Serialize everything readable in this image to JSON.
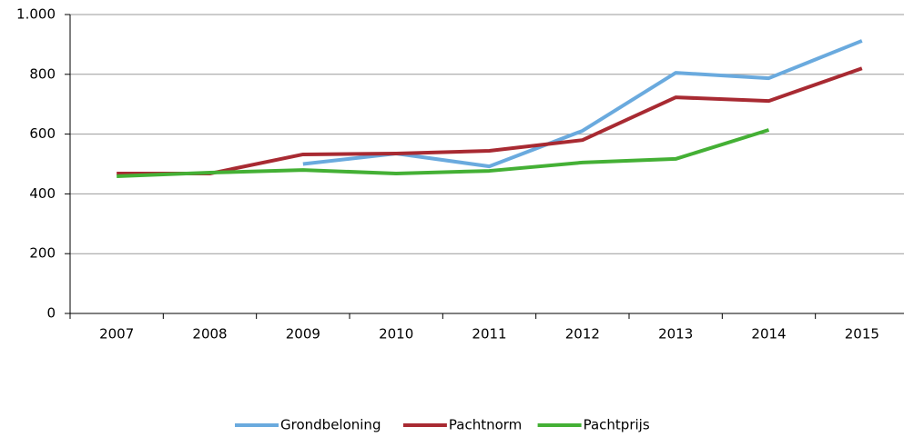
{
  "chart_data": {
    "type": "line",
    "categories": [
      "2007",
      "2008",
      "2009",
      "2010",
      "2011",
      "2012",
      "2013",
      "2014",
      "2015"
    ],
    "series": [
      {
        "name": "Grondbeloning",
        "color": "#6aaade",
        "values": [
          null,
          null,
          500,
          535,
          492,
          611,
          805,
          787,
          912
        ]
      },
      {
        "name": "Pachtnorm",
        "color": "#a82a32",
        "values": [
          468,
          468,
          532,
          535,
          544,
          580,
          723,
          711,
          820
        ]
      },
      {
        "name": "Pachtprijs",
        "color": "#44b035",
        "values": [
          459,
          471,
          480,
          468,
          477,
          505,
          517,
          614,
          null
        ]
      }
    ],
    "ylim": [
      0,
      1000
    ],
    "yticks": [
      0,
      200,
      400,
      600,
      800,
      {
        "value": 1000,
        "label": "1.000"
      }
    ],
    "grid": true,
    "legend": "bottom"
  }
}
